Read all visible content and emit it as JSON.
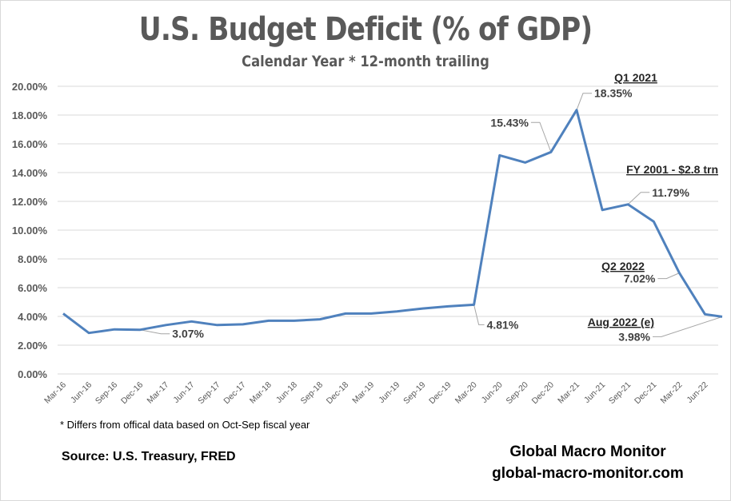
{
  "chart_data": {
    "type": "line",
    "title": "U.S. Budget Deficit (% of GDP)",
    "subtitle": "Calendar Year * 12-month trailing",
    "xlabel": "",
    "ylabel": "",
    "ylim": [
      0,
      20
    ],
    "ytick_step": 2,
    "yticks": [
      "0.00%",
      "2.00%",
      "4.00%",
      "6.00%",
      "8.00%",
      "10.00%",
      "12.00%",
      "14.00%",
      "16.00%",
      "18.00%",
      "20.00%"
    ],
    "grid": true,
    "legend": "none",
    "color": "#4f81bd",
    "x": [
      "Mar-16",
      "Jun-16",
      "Sep-16",
      "Dec-16",
      "Mar-17",
      "Jun-17",
      "Sep-17",
      "Dec-17",
      "Mar-18",
      "Jun-18",
      "Sep-18",
      "Dec-18",
      "Mar-19",
      "Jun-19",
      "Sep-19",
      "Dec-19",
      "Mar-20",
      "Jun-20",
      "Sep-20",
      "Dec-20",
      "Mar-21",
      "Jun-21",
      "Sep-21",
      "Dec-21",
      "Mar-22",
      "Jun-22",
      "Aug-22"
    ],
    "xtick_labels": [
      "Mar-16",
      "Jun-16",
      "Sep-16",
      "Dec-16",
      "Mar-17",
      "Jun-17",
      "Sep-17",
      "Dec-17",
      "Mar-18",
      "Jun-18",
      "Sep-18",
      "Dec-18",
      "Mar-19",
      "Jun-19",
      "Sep-19",
      "Dec-19",
      "Mar-20",
      "Jun-20",
      "Sep-20",
      "Dec-20",
      "Mar-21",
      "Jun-21",
      "Sep-21",
      "Dec-21",
      "Mar-22",
      "Jun-22"
    ],
    "series": [
      {
        "name": "Budget Deficit % of GDP",
        "values": [
          4.2,
          2.85,
          3.1,
          3.07,
          3.4,
          3.65,
          3.4,
          3.45,
          3.7,
          3.7,
          3.8,
          4.2,
          4.2,
          4.35,
          4.55,
          4.7,
          4.81,
          15.2,
          14.7,
          15.43,
          18.35,
          11.4,
          11.79,
          10.6,
          7.02,
          4.15,
          3.98
        ]
      }
    ],
    "data_labels": [
      {
        "index": 3,
        "text": "3.07%"
      },
      {
        "index": 16,
        "text": "4.81%"
      },
      {
        "index": 19,
        "text": "15.43%"
      },
      {
        "index": 20,
        "text": "18.35%"
      },
      {
        "index": 22,
        "text": "11.79%"
      },
      {
        "index": 24,
        "text": "7.02%"
      },
      {
        "index": 26,
        "text": "3.98%"
      }
    ],
    "annotations": [
      {
        "index": 20,
        "text": "Q1 2021"
      },
      {
        "index": 22,
        "text": "FY 2001 - $2.8 trn"
      },
      {
        "index": 24,
        "text": "Q2 2022"
      },
      {
        "index": 26,
        "text": "Aug 2022 (e)"
      }
    ]
  },
  "footnote": "* Differs from offical data based on Oct-Sep fiscal year",
  "source": "Source:  U.S. Treasury,  FRED",
  "brand": {
    "name": "Global Macro Monitor",
    "url": "global-macro-monitor.com"
  }
}
